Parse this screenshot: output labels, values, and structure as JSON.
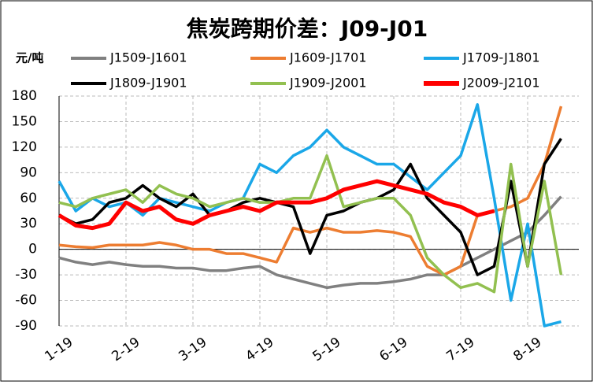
{
  "chart_data": {
    "type": "line",
    "title": "焦炭跨期价差：J09-J01",
    "y_label": "元/吨",
    "categories": [
      "1-19",
      null,
      null,
      null,
      "2-19",
      null,
      null,
      null,
      "3-19",
      null,
      null,
      null,
      "4-19",
      null,
      null,
      null,
      "5-19",
      null,
      null,
      null,
      "6-19",
      null,
      null,
      null,
      "7-19",
      null,
      null,
      null,
      "8-19",
      null,
      null
    ],
    "series": [
      {
        "name": "J1509-J1601",
        "color": "#808080",
        "values": [
          -10,
          -15,
          -18,
          -15,
          -18,
          -20,
          -20,
          -22,
          -22,
          -25,
          -25,
          -22,
          -20,
          -30,
          -35,
          -40,
          -45,
          -42,
          -40,
          -40,
          -38,
          -35,
          -30,
          -30,
          -20,
          -10,
          0,
          10,
          20,
          40,
          62
        ]
      },
      {
        "name": "J1609-J1701",
        "color": "#ed7d31",
        "values": [
          5,
          3,
          2,
          5,
          5,
          5,
          8,
          5,
          0,
          0,
          -5,
          -5,
          -10,
          -15,
          25,
          20,
          25,
          20,
          20,
          22,
          20,
          15,
          -20,
          -30,
          -20,
          40,
          45,
          50,
          60,
          100,
          168
        ]
      },
      {
        "name": "J1709-J1801",
        "color": "#1aa7e8",
        "values": [
          80,
          45,
          60,
          50,
          55,
          40,
          60,
          55,
          50,
          45,
          55,
          60,
          100,
          90,
          110,
          120,
          140,
          120,
          110,
          100,
          100,
          85,
          70,
          90,
          110,
          170,
          60,
          -60,
          30,
          -90,
          -85
        ]
      },
      {
        "name": "J1809-J1901",
        "color": "#000000",
        "values": [
          40,
          30,
          35,
          55,
          60,
          75,
          60,
          50,
          65,
          40,
          45,
          55,
          60,
          55,
          50,
          -5,
          40,
          45,
          55,
          60,
          70,
          100,
          60,
          40,
          20,
          -30,
          -20,
          80,
          -20,
          100,
          130
        ]
      },
      {
        "name": "J1909-J2001",
        "color": "#92c050",
        "values": [
          55,
          50,
          60,
          65,
          70,
          55,
          75,
          65,
          60,
          50,
          55,
          60,
          55,
          55,
          60,
          60,
          110,
          50,
          55,
          60,
          60,
          40,
          -10,
          -30,
          -45,
          -40,
          -50,
          100,
          -20,
          80,
          -30
        ]
      },
      {
        "name": "J2009-J2101",
        "color": "#ff0000",
        "values": [
          40,
          28,
          25,
          30,
          55,
          45,
          50,
          35,
          30,
          40,
          45,
          50,
          45,
          55,
          55,
          55,
          60,
          70,
          75,
          80,
          75,
          70,
          65,
          55,
          50,
          40,
          45,
          null,
          null,
          null,
          null
        ]
      }
    ],
    "ylim": [
      -90,
      180
    ],
    "yticks": [
      -90,
      -60,
      -30,
      0,
      30,
      60,
      90,
      120,
      150,
      180
    ],
    "grid": true
  }
}
